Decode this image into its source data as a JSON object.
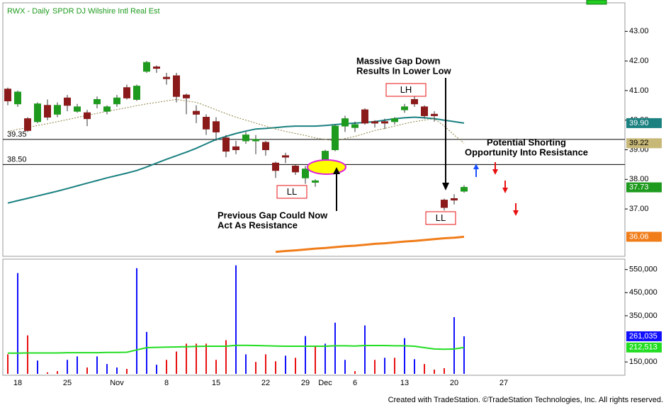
{
  "chart_data": {
    "type": "candlestick",
    "title": "RWX - Daily",
    "subtitle": "SPDR DJ Wilshire Intl Real Est",
    "categories": [
      null,
      "18",
      null,
      null,
      null,
      null,
      "25",
      null,
      null,
      null,
      null,
      "Nov",
      null,
      null,
      null,
      null,
      "8",
      null,
      null,
      null,
      null,
      "15",
      null,
      null,
      null,
      null,
      "22",
      null,
      null,
      null,
      "29",
      null,
      "Dec",
      null,
      null,
      "6",
      null,
      null,
      null,
      null,
      "13",
      null,
      null,
      null,
      null,
      "20",
      null,
      null,
      null,
      null,
      "27"
    ],
    "open": [
      41.05,
      40.55,
      40.05,
      39.95,
      40.5,
      40.2,
      40.75,
      40.3,
      40.25,
      40.55,
      40.3,
      40.55,
      41.1,
      40.7,
      41.65,
      41.8,
      41.45,
      41.5,
      40.85,
      40.3,
      40.1,
      39.95,
      39.4,
      39.1,
      39.3,
      39.3,
      39.25,
      38.55,
      38.8,
      38.45,
      38.05,
      37.9,
      38.5,
      39.0,
      39.8,
      39.75,
      40.35,
      39.95,
      39.95,
      39.95,
      40.35,
      40.7,
      40.45,
      40.2,
      37.3,
      37.35,
      37.6,
      null,
      null,
      null,
      null
    ],
    "high": [
      41.1,
      41.0,
      40.1,
      40.6,
      40.7,
      40.6,
      40.85,
      40.55,
      40.35,
      40.8,
      40.5,
      40.85,
      41.2,
      41.2,
      42.0,
      41.85,
      41.6,
      41.6,
      40.9,
      40.5,
      40.2,
      40.1,
      39.5,
      39.3,
      39.6,
      39.5,
      39.3,
      38.6,
      38.9,
      38.5,
      38.45,
      38.0,
      39.0,
      39.85,
      40.15,
      39.95,
      40.4,
      40.0,
      40.05,
      40.1,
      40.55,
      40.8,
      40.5,
      40.3,
      37.35,
      37.5,
      37.8,
      null,
      null,
      null,
      null
    ],
    "low": [
      40.5,
      40.45,
      39.6,
      39.9,
      40.0,
      40.1,
      40.3,
      40.25,
      39.8,
      40.4,
      40.2,
      40.45,
      40.7,
      40.65,
      41.6,
      41.6,
      41.2,
      40.6,
      40.2,
      39.9,
      39.5,
      39.3,
      38.75,
      38.85,
      39.2,
      38.85,
      38.8,
      38.05,
      38.55,
      38.15,
      37.85,
      37.75,
      38.45,
      38.95,
      39.6,
      39.6,
      39.85,
      39.75,
      39.7,
      39.85,
      40.25,
      40.45,
      40.05,
      39.95,
      36.95,
      37.15,
      37.55,
      null,
      null,
      null,
      null
    ],
    "close": [
      40.65,
      40.95,
      39.65,
      40.55,
      40.1,
      40.5,
      40.5,
      40.45,
      40.05,
      40.7,
      40.45,
      40.75,
      40.75,
      41.15,
      41.95,
      41.75,
      41.4,
      40.8,
      40.75,
      40.2,
      39.7,
      39.6,
      38.95,
      39.0,
      39.5,
      39.35,
      39.0,
      38.3,
      38.75,
      38.25,
      38.35,
      37.95,
      38.95,
      39.8,
      40.05,
      39.85,
      39.9,
      39.9,
      39.9,
      40.05,
      40.45,
      40.55,
      40.15,
      40.15,
      37.05,
      37.3,
      37.73,
      null,
      null,
      null,
      null
    ],
    "up_color": "#1e9a1e",
    "down_color": "#8b1a1a",
    "ylim": [
      35.4,
      43.94
    ],
    "yticks": [
      {
        "value": 43,
        "label": "43.00"
      },
      {
        "value": 42,
        "label": "42.00"
      },
      {
        "value": 41,
        "label": "41.00"
      },
      {
        "value": 40,
        "label": "40.00"
      },
      {
        "value": 39,
        "label": "39.00"
      },
      {
        "value": 38,
        "label": "38.00"
      },
      {
        "value": 37,
        "label": "37.00"
      }
    ],
    "lines": [
      {
        "color": "#1a8080",
        "dashed": false,
        "values": [
          37.2,
          37.28,
          37.36,
          37.44,
          37.52,
          37.6,
          37.69,
          37.78,
          37.87,
          37.96,
          38.05,
          38.13,
          38.21,
          38.3,
          38.42,
          38.55,
          38.68,
          38.8,
          38.92,
          39.05,
          39.2,
          39.35,
          39.45,
          39.55,
          39.63,
          39.7,
          39.72,
          39.75,
          39.78,
          39.8,
          39.8,
          39.8,
          39.82,
          39.85,
          39.88,
          39.9,
          39.92,
          39.95,
          40.0,
          40.05,
          40.08,
          40.1,
          40.08,
          40.05,
          40.0,
          39.95,
          39.9,
          null,
          null,
          null,
          null
        ]
      },
      {
        "color": "#8f8040",
        "dashed": true,
        "values": [
          39.62,
          39.69,
          39.75,
          39.82,
          39.88,
          39.95,
          40.02,
          40.09,
          40.16,
          40.23,
          40.3,
          40.36,
          40.42,
          40.49,
          40.55,
          40.6,
          40.65,
          40.7,
          40.65,
          40.6,
          40.48,
          40.35,
          40.22,
          40.1,
          40.0,
          39.9,
          39.8,
          39.7,
          39.62,
          39.55,
          39.48,
          39.4,
          39.35,
          39.3,
          39.38,
          39.45,
          39.55,
          39.65,
          39.72,
          39.8,
          39.88,
          39.95,
          40.0,
          40.05,
          39.8,
          39.5,
          39.22,
          null,
          null,
          null,
          null
        ]
      },
      {
        "color": "#f07d1a",
        "dashed": false,
        "values": [
          null,
          null,
          null,
          null,
          null,
          null,
          null,
          null,
          null,
          null,
          null,
          null,
          null,
          null,
          null,
          null,
          null,
          null,
          null,
          null,
          null,
          null,
          null,
          null,
          null,
          null,
          null,
          35.55,
          35.58,
          35.6,
          35.63,
          35.66,
          35.68,
          35.71,
          35.74,
          35.76,
          35.79,
          35.82,
          35.84,
          35.87,
          35.9,
          35.92,
          35.95,
          35.98,
          36.01,
          36.03,
          36.06,
          null,
          null,
          null,
          null
        ]
      }
    ],
    "levels": [
      {
        "value": 39.35,
        "label": "39.35"
      },
      {
        "value": 38.5,
        "label": "38.50"
      }
    ],
    "price_markers": [
      {
        "value": 39.9,
        "label": "39.90",
        "color": "#1a8080"
      },
      {
        "value": 39.22,
        "label": "39.22",
        "color": "#c8b878"
      },
      {
        "value": 37.73,
        "label": "37.73",
        "color": "#1e9a1e"
      },
      {
        "value": 36.06,
        "label": "36.06",
        "color": "#f07d1a"
      }
    ],
    "annotations": [
      {
        "lines": [
          "Massive Gap Down",
          "Results In Lower Low"
        ]
      },
      {
        "lines": [
          "Previous Gap Could Now",
          "Act As Resistance"
        ]
      },
      {
        "lines": [
          "Potential Shorting",
          "Opportunity Into Resistance"
        ]
      }
    ],
    "boxed_labels": [
      "LH",
      "LL",
      "LL"
    ],
    "volume": {
      "values": [
        183000,
        535000,
        265000,
        156000,
        105000,
        110000,
        159000,
        174000,
        126000,
        174000,
        141000,
        126000,
        120000,
        556000,
        280000,
        138000,
        159000,
        195000,
        229000,
        229000,
        229000,
        159000,
        244000,
        568000,
        183000,
        150000,
        183000,
        153000,
        177000,
        168000,
        262000,
        220000,
        229000,
        320000,
        159000,
        110000,
        308000,
        159000,
        168000,
        168000,
        253000,
        162000,
        141000,
        117000,
        123000,
        344000,
        261035,
        null,
        null,
        null,
        null
      ],
      "colors": [
        "#e81010",
        "#1010ff",
        "#e81010",
        "#1010ff",
        "#e81010",
        "#e81010",
        "#1010ff",
        "#1010ff",
        "#e81010",
        "#1010ff",
        "#1010ff",
        "#1010ff",
        "#e81010",
        "#1010ff",
        "#1010ff",
        "#1010ff",
        "#e81010",
        "#e81010",
        "#e81010",
        "#e81010",
        "#e81010",
        "#e81010",
        "#e81010",
        "#1010ff",
        "#1010ff",
        "#e81010",
        "#e81010",
        "#e81010",
        "#1010ff",
        "#e81010",
        "#1010ff",
        "#e81010",
        "#1010ff",
        "#1010ff",
        "#1010ff",
        "#e81010",
        "#1010ff",
        "#e81010",
        "#1010ff",
        "#e81010",
        "#1010ff",
        "#1010ff",
        "#e81010",
        "#e81010",
        "#e81010",
        "#1010ff",
        "#1010ff",
        null,
        null,
        null,
        null
      ],
      "ylim": [
        98500,
        595000
      ],
      "yticks": [
        {
          "value": 550000,
          "label": "550,000"
        },
        {
          "value": 450000,
          "label": "450,000"
        },
        {
          "value": 350000,
          "label": "350,000"
        },
        {
          "value": 150000,
          "label": "150,000"
        }
      ],
      "average": {
        "color": "#22dd22",
        "values": [
          188000,
          188000,
          189000,
          189000,
          189000,
          189000,
          190000,
          190000,
          190000,
          190000,
          191000,
          191000,
          192000,
          202000,
          212000,
          213000,
          214000,
          215000,
          216000,
          217000,
          218000,
          218000,
          218000,
          222000,
          222000,
          221000,
          220000,
          219000,
          218000,
          218000,
          218000,
          218000,
          218000,
          220000,
          220000,
          219000,
          221000,
          221000,
          221000,
          220000,
          220000,
          218000,
          212000,
          206000,
          205000,
          206000,
          212513,
          null,
          null,
          null,
          null
        ]
      },
      "markers": [
        {
          "value": 261035,
          "label": "261,035",
          "color": "#1010ff"
        },
        {
          "value": 212513,
          "label": "212,513",
          "color": "#22dd22"
        }
      ]
    },
    "footer": "Created with TradeStation. ©TradeStation Technologies, Inc. All rights reserved."
  }
}
